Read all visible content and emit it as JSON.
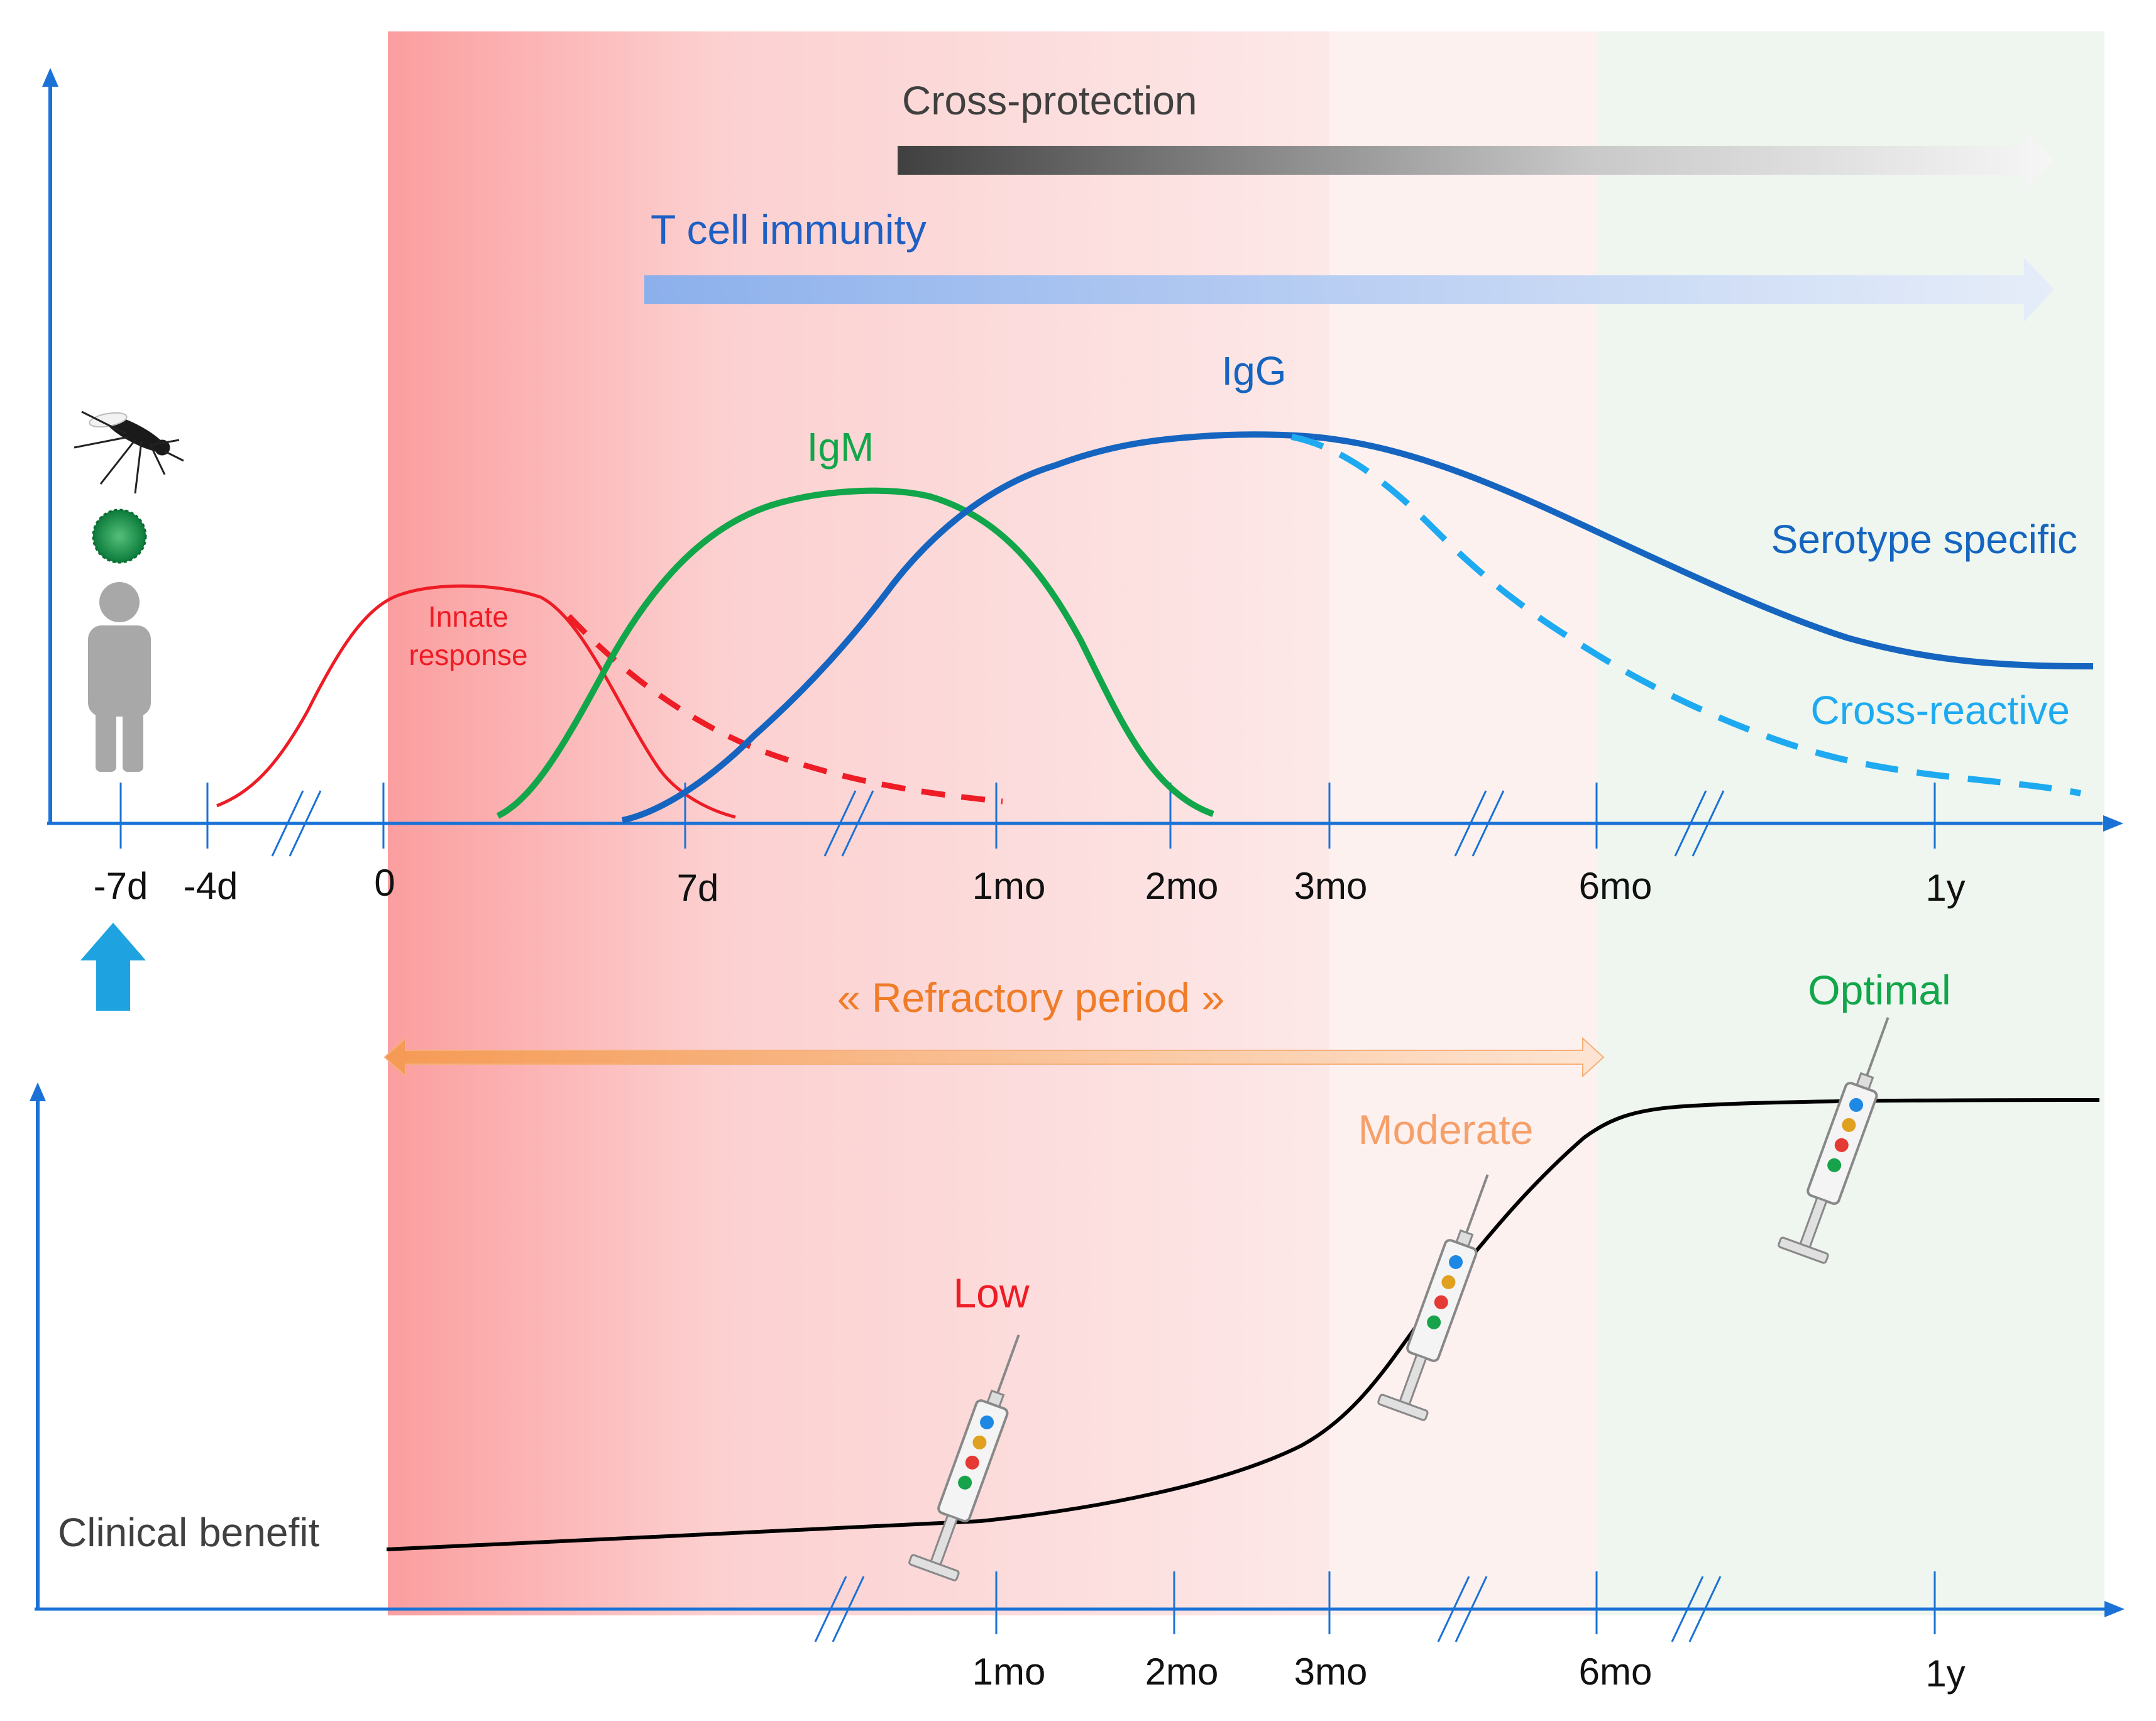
{
  "labels": {
    "cross_protection": "Cross-protection",
    "t_cell_immunity": "T cell immunity",
    "igg": "IgG",
    "igm": "IgM",
    "innate_line1": "Innate",
    "innate_line2": "response",
    "serotype_specific": "Serotype specific",
    "cross_reactive": "Cross-reactive",
    "refractory_period": "« Refractory period »",
    "clinical_benefit": "Clinical benefit",
    "low": "Low",
    "moderate": "Moderate",
    "optimal": "Optimal"
  },
  "top_axis_ticks": [
    "-7d",
    "-4d",
    "0",
    "7d",
    "1mo",
    "2mo",
    "3mo",
    "6mo",
    "1y"
  ],
  "bottom_axis_ticks": [
    "1mo",
    "2mo",
    "3mo",
    "6mo",
    "1y"
  ],
  "colors": {
    "axis": "#1a72d6",
    "innate": "#ee1c25",
    "igm": "#12a64a",
    "igg": "#1565c0",
    "cross_reactive": "#1eaaf1",
    "refractory": "#f08a3a",
    "clinical": "#000000",
    "low": "#ee1c25",
    "moderate": "#f5a06a",
    "optimal": "#12a64a"
  }
}
